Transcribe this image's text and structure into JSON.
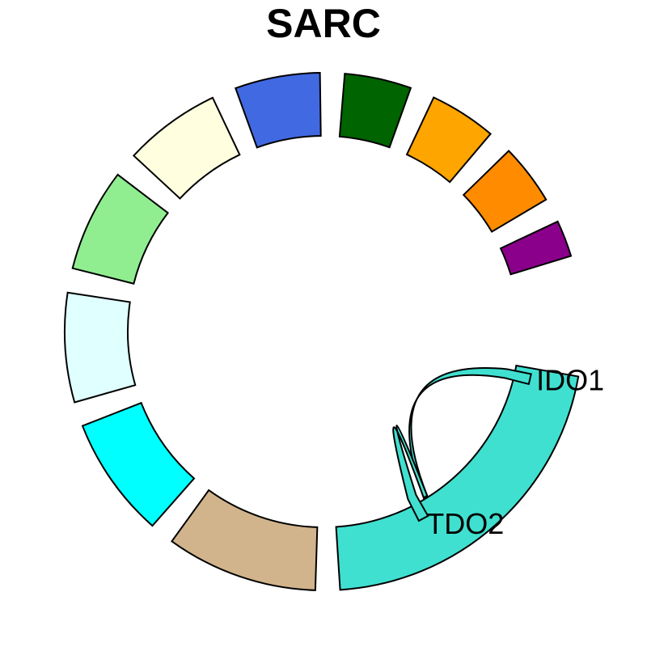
{
  "chart_data": {
    "type": "chord",
    "title": "SARC",
    "sectors": [
      {
        "label": "",
        "value": 3.0,
        "color": "#8B008B"
      },
      {
        "label": "",
        "value": 5.0,
        "color": "#FF8C00"
      },
      {
        "label": "",
        "value": 5.5,
        "color": "#FFA500"
      },
      {
        "label": "",
        "value": 5.5,
        "color": "#006400"
      },
      {
        "label": "",
        "value": 7.0,
        "color": "#4169E1"
      },
      {
        "label": "",
        "value": 8.0,
        "color": "#FFFFE0"
      },
      {
        "label": "",
        "value": 8.5,
        "color": "#90EE90"
      },
      {
        "label": "",
        "value": 9.0,
        "color": "#E0FFFF"
      },
      {
        "label": "",
        "value": 10.0,
        "color": "#00FFFF"
      },
      {
        "label": "",
        "value": 12.5,
        "color": "#D2B48C"
      },
      {
        "label": "",
        "value": 28.0,
        "color": "#40E0D0"
      }
    ],
    "genes": [
      {
        "label": "IDO1",
        "color": "#40E0D0"
      },
      {
        "label": "TDO2",
        "color": "#40E0D0"
      }
    ],
    "grid": false,
    "legend": "none"
  }
}
